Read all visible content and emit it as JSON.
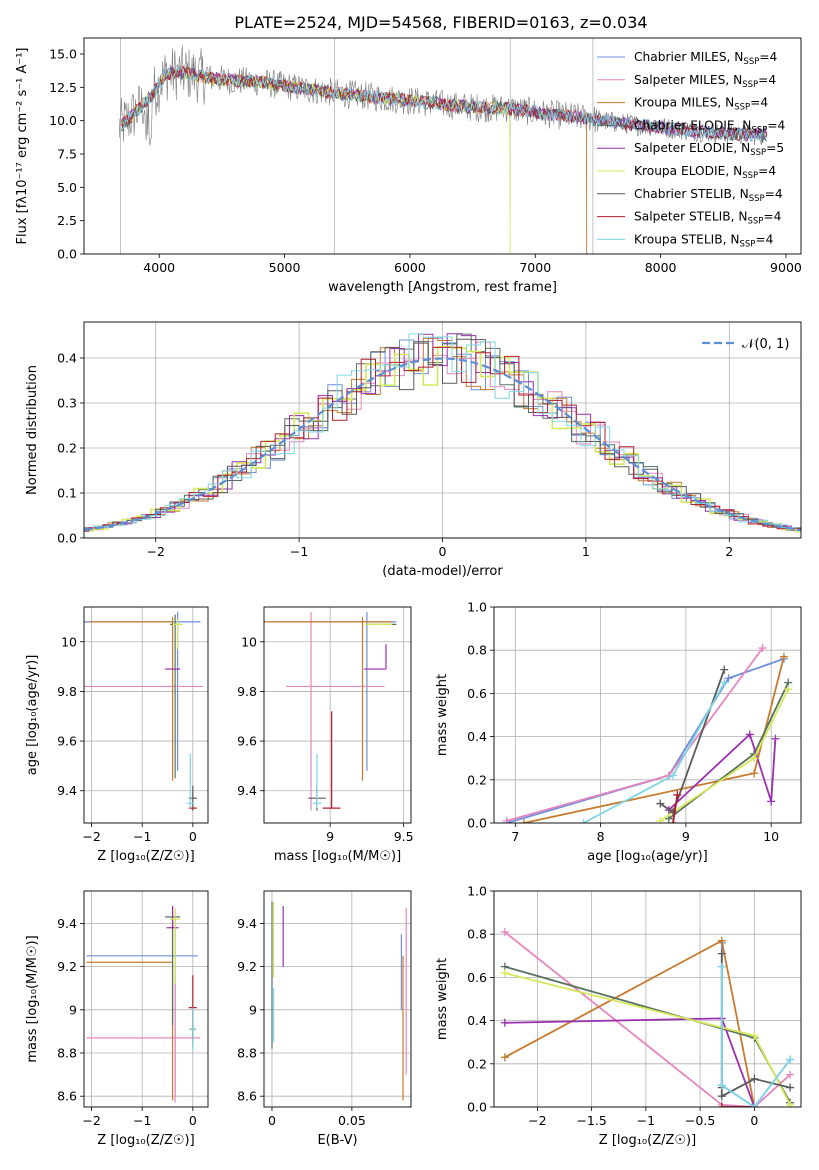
{
  "figure": {
    "title": "PLATE=2524, MJD=54568, FIBERID=0163, z=0.034"
  },
  "series_styles": [
    {
      "name": "Chabrier MILES",
      "color": "#6d8fdb"
    },
    {
      "name": "Salpeter MILES",
      "color": "#e586c0"
    },
    {
      "name": "Kroupa MILES",
      "color": "#c87a2e"
    },
    {
      "name": "Chabrier ELODIE",
      "color": "#56735e"
    },
    {
      "name": "Salpeter ELODIE",
      "color": "#9a2fb0"
    },
    {
      "name": "Kroupa ELODIE",
      "color": "#d6e85a"
    },
    {
      "name": "Chabrier STELIB",
      "color": "#5a5a5a"
    },
    {
      "name": "Salpeter STELIB",
      "color": "#b01e2a"
    },
    {
      "name": "Kroupa STELIB",
      "color": "#7fd6e6"
    }
  ],
  "chart_data": [
    {
      "id": "spectrum",
      "type": "line",
      "title": "PLATE=2524, MJD=54568, FIBERID=0163, z=0.034",
      "xlabel": "wavelength [Angstrom, rest frame]",
      "ylabel": "Flux [fλ10⁻¹⁷ erg cm⁻² s⁻¹ A⁻¹]",
      "xlim": [
        3400,
        9120
      ],
      "ylim": [
        0,
        16.2
      ],
      "xticks": [
        4000,
        5000,
        6000,
        7000,
        8000,
        9000
      ],
      "yticks": [
        0.0,
        2.5,
        5.0,
        7.5,
        10.0,
        12.5,
        15.0
      ],
      "legend_location": "top-right",
      "legend": [
        {
          "label": "Chabrier MILES, N",
          "sub": "SSP",
          "suffix": "=4"
        },
        {
          "label": "Salpeter MILES, N",
          "sub": "SSP",
          "suffix": "=4"
        },
        {
          "label": "Kroupa MILES, N",
          "sub": "SSP",
          "suffix": "=4"
        },
        {
          "label": "Chabrier ELODIE, N",
          "sub": "SSP",
          "suffix": "=4"
        },
        {
          "label": "Salpeter ELODIE, N",
          "sub": "SSP",
          "suffix": "=5"
        },
        {
          "label": "Kroupa ELODIE, N",
          "sub": "SSP",
          "suffix": "=4"
        },
        {
          "label": "Chabrier STELIB, N",
          "sub": "SSP",
          "suffix": "=4"
        },
        {
          "label": "Salpeter STELIB, N",
          "sub": "SSP",
          "suffix": "=4"
        },
        {
          "label": "Kroupa STELIB, N",
          "sub": "SSP",
          "suffix": "=4"
        }
      ],
      "continuum": {
        "x": [
          3680,
          3800,
          3950,
          4050,
          4200,
          4400,
          4600,
          4800,
          5000,
          5300,
          5600,
          5900,
          6200,
          6500,
          6800,
          7100,
          7400,
          7700,
          8000,
          8300,
          8600,
          8850
        ],
        "y": [
          9.5,
          10.5,
          12.0,
          13.5,
          13.6,
          13.2,
          13.0,
          12.9,
          12.6,
          12.2,
          11.9,
          11.6,
          11.3,
          11.0,
          10.9,
          10.5,
          10.2,
          9.8,
          9.5,
          9.2,
          9.0,
          8.9
        ]
      },
      "model_cutoffs": [
        {
          "series": "Kroupa MILES",
          "x": 7410
        },
        {
          "series": "Salpeter MILES",
          "x": 7410
        },
        {
          "series": "Kroupa ELODIE",
          "x": 6800
        }
      ]
    },
    {
      "id": "residuals",
      "type": "bar",
      "xlabel": "(data-model)/error",
      "ylabel": "Normed distribution",
      "xlim": [
        -2.5,
        2.5
      ],
      "ylim": [
        0,
        0.48
      ],
      "xticks": [
        -2,
        -1,
        0,
        1,
        2
      ],
      "yticks": [
        0.0,
        0.1,
        0.2,
        0.3,
        0.4
      ],
      "legend": [
        {
          "label": "𝒩(0, 1)",
          "style": "dashed"
        }
      ],
      "legend_location": "top-right",
      "gaussian": {
        "mean": 0,
        "sigma": 1,
        "color": "#5b8fd6"
      },
      "bin_width": 0.1
    },
    {
      "id": "age_vs_Z",
      "type": "scatter",
      "xlabel": "Z [log₁₀(Z/Z☉)]",
      "ylabel": "age  [log₁₀(age/yr)]",
      "xlim": [
        -2.15,
        0.3
      ],
      "ylim": [
        9.27,
        10.14
      ],
      "xticks": [
        -2,
        -1,
        0
      ],
      "yticks": [
        9.4,
        9.6,
        9.8,
        10.0
      ],
      "points": [
        {
          "series": "Chabrier MILES",
          "x": -0.3,
          "y": 10.08,
          "xerr": [
            1.85,
            0.45
          ],
          "yerr": [
            0.6,
            0.04
          ]
        },
        {
          "series": "Salpeter MILES",
          "x": -0.3,
          "y": 9.82,
          "xerr": [
            1.85,
            0.5
          ],
          "yerr": [
            0.0,
            0.0
          ]
        },
        {
          "series": "Kroupa MILES",
          "x": -0.4,
          "y": 10.08,
          "xerr": [
            1.65,
            0.0
          ],
          "yerr": [
            0.64,
            0.02
          ]
        },
        {
          "series": "Chabrier ELODIE",
          "x": -0.35,
          "y": 10.07,
          "xerr": [
            0.1,
            0.1
          ],
          "yerr": [
            0.62,
            0.04
          ]
        },
        {
          "series": "Salpeter ELODIE",
          "x": -0.4,
          "y": 9.89,
          "xerr": [
            0.15,
            0.15
          ],
          "yerr": [
            0.0,
            0.0
          ]
        },
        {
          "series": "Kroupa ELODIE",
          "x": -0.3,
          "y": 10.07,
          "xerr": [
            0.1,
            0.1
          ],
          "yerr": [
            0.1,
            0.02
          ]
        },
        {
          "series": "Chabrier STELIB",
          "x": 0.0,
          "y": 9.37,
          "xerr": [
            0.08,
            0.08
          ],
          "yerr": [
            0.05,
            0.05
          ]
        },
        {
          "series": "Salpeter STELIB",
          "x": 0.0,
          "y": 9.33,
          "xerr": [
            0.08,
            0.08
          ],
          "yerr": [
            0.0,
            0.0
          ]
        },
        {
          "series": "Kroupa STELIB",
          "x": -0.05,
          "y": 9.35,
          "xerr": [
            0.08,
            0.08
          ],
          "yerr": [
            0.02,
            0.2
          ]
        }
      ]
    },
    {
      "id": "age_vs_mass",
      "type": "scatter",
      "xlabel": "mass [log₁₀(M/M☉)]",
      "ylabel": "",
      "xlim": [
        8.55,
        9.55
      ],
      "ylim": [
        9.27,
        10.14
      ],
      "xticks": [
        9.0,
        9.5
      ],
      "yticks": [
        9.4,
        9.6,
        9.8,
        10.0
      ],
      "points": [
        {
          "series": "Chabrier MILES",
          "x": 9.25,
          "y": 10.08,
          "xerr": [
            0.7,
            0.2
          ],
          "yerr": [
            0.6,
            0.04
          ]
        },
        {
          "series": "Salpeter MILES",
          "x": 8.87,
          "y": 9.82,
          "xerr": [
            0.17,
            0.5
          ],
          "yerr": [
            0.5,
            0.3
          ]
        },
        {
          "series": "Kroupa MILES",
          "x": 9.22,
          "y": 10.08,
          "xerr": [
            0.67,
            0.2
          ],
          "yerr": [
            0.64,
            0.02
          ]
        },
        {
          "series": "Chabrier ELODIE",
          "x": 9.43,
          "y": 10.07,
          "xerr": [
            0.18,
            0.02
          ],
          "yerr": [
            0.0,
            0.0
          ]
        },
        {
          "series": "Salpeter ELODIE",
          "x": 9.38,
          "y": 9.89,
          "xerr": [
            0.15,
            0.0
          ],
          "yerr": [
            0.0,
            0.1
          ]
        },
        {
          "series": "Kroupa ELODIE",
          "x": 9.42,
          "y": 10.07,
          "xerr": [
            0.18,
            0.0
          ],
          "yerr": [
            0.0,
            0.0
          ]
        },
        {
          "series": "Chabrier STELIB",
          "x": 8.91,
          "y": 9.37,
          "xerr": [
            0.06,
            0.06
          ],
          "yerr": [
            0.05,
            0.05
          ]
        },
        {
          "series": "Salpeter STELIB",
          "x": 9.01,
          "y": 9.33,
          "xerr": [
            0.06,
            0.06
          ],
          "yerr": [
            0.0,
            0.39
          ]
        },
        {
          "series": "Kroupa STELIB",
          "x": 8.91,
          "y": 9.35,
          "xerr": [
            0.03,
            0.03
          ],
          "yerr": [
            0.02,
            0.2
          ]
        }
      ]
    },
    {
      "id": "weight_vs_age",
      "type": "line",
      "xlabel": "age  [log₁₀(age/yr)]",
      "ylabel": "mass weight",
      "xlim": [
        6.75,
        10.35
      ],
      "ylim": [
        0,
        1.0
      ],
      "xticks": [
        7,
        8,
        9,
        10
      ],
      "yticks": [
        0.0,
        0.2,
        0.4,
        0.6,
        0.8,
        1.0
      ],
      "series": [
        {
          "name": "Chabrier MILES",
          "points": [
            [
              6.9,
              0.0
            ],
            [
              8.8,
              0.22
            ],
            [
              9.5,
              0.67
            ],
            [
              10.15,
              0.76
            ]
          ]
        },
        {
          "name": "Salpeter MILES",
          "points": [
            [
              6.9,
              0.01
            ],
            [
              8.8,
              0.22
            ],
            [
              9.9,
              0.81
            ]
          ]
        },
        {
          "name": "Kroupa MILES",
          "points": [
            [
              7.1,
              0.0
            ],
            [
              9.8,
              0.23
            ],
            [
              10.15,
              0.77
            ]
          ]
        },
        {
          "name": "Chabrier ELODIE",
          "points": [
            [
              8.8,
              0.02
            ],
            [
              9.8,
              0.32
            ],
            [
              10.2,
              0.65
            ]
          ]
        },
        {
          "name": "Salpeter ELODIE",
          "points": [
            [
              8.8,
              0.06
            ],
            [
              9.75,
              0.41
            ],
            [
              10.0,
              0.1
            ],
            [
              10.05,
              0.39
            ]
          ]
        },
        {
          "name": "Kroupa ELODIE",
          "points": [
            [
              8.7,
              0.01
            ],
            [
              9.8,
              0.3
            ],
            [
              10.2,
              0.62
            ]
          ]
        },
        {
          "name": "Chabrier STELIB",
          "points": [
            [
              8.7,
              0.09
            ],
            [
              8.85,
              0.05
            ],
            [
              9.45,
              0.71
            ]
          ]
        },
        {
          "name": "Salpeter STELIB",
          "points": [
            [
              8.85,
              0.0
            ],
            [
              8.9,
              0.13
            ]
          ]
        },
        {
          "name": "Kroupa STELIB",
          "points": [
            [
              7.8,
              0.0
            ],
            [
              8.85,
              0.22
            ],
            [
              9.45,
              0.65
            ]
          ]
        }
      ]
    },
    {
      "id": "mass_vs_Z",
      "type": "scatter",
      "xlabel": "Z [log₁₀(Z/Z☉)]",
      "ylabel": "mass [log₁₀(M/M☉)]",
      "xlim": [
        -2.15,
        0.3
      ],
      "ylim": [
        8.55,
        9.55
      ],
      "xticks": [
        -2,
        -1,
        0
      ],
      "yticks": [
        8.6,
        8.8,
        9.0,
        9.2,
        9.4
      ],
      "points": [
        {
          "series": "Chabrier MILES",
          "x": -0.35,
          "y": 9.25,
          "xerr": [
            1.75,
            0.45
          ],
          "yerr": [
            0.65,
            0.2
          ]
        },
        {
          "series": "Salpeter MILES",
          "x": -0.35,
          "y": 8.87,
          "xerr": [
            1.75,
            0.5
          ],
          "yerr": [
            0.3,
            0.6
          ]
        },
        {
          "series": "Kroupa MILES",
          "x": -0.4,
          "y": 9.22,
          "xerr": [
            1.7,
            0.0
          ],
          "yerr": [
            0.64,
            0.2
          ]
        },
        {
          "series": "Chabrier ELODIE",
          "x": -0.4,
          "y": 9.43,
          "xerr": [
            0.15,
            0.15
          ],
          "yerr": [
            0.5,
            0.05
          ]
        },
        {
          "series": "Salpeter ELODIE",
          "x": -0.4,
          "y": 9.38,
          "xerr": [
            0.12,
            0.12
          ],
          "yerr": [
            0.0,
            0.1
          ]
        },
        {
          "series": "Kroupa ELODIE",
          "x": -0.35,
          "y": 9.42,
          "xerr": [
            0.1,
            0.1
          ],
          "yerr": [
            0.3,
            0.05
          ]
        },
        {
          "series": "Chabrier STELIB",
          "x": 0.0,
          "y": 8.91,
          "xerr": [
            0.06,
            0.06
          ],
          "yerr": [
            0.08,
            0.08
          ]
        },
        {
          "series": "Salpeter STELIB",
          "x": 0.0,
          "y": 9.01,
          "xerr": [
            0.08,
            0.08
          ],
          "yerr": [
            0.15,
            0.15
          ]
        },
        {
          "series": "Kroupa STELIB",
          "x": 0.0,
          "y": 8.91,
          "xerr": [
            0.05,
            0.05
          ],
          "yerr": [
            0.1,
            0.1
          ]
        }
      ]
    },
    {
      "id": "mass_vs_EBV",
      "type": "scatter",
      "xlabel": "E(B-V)",
      "ylabel": "",
      "xlim": [
        -0.005,
        0.087
      ],
      "ylim": [
        8.55,
        9.55
      ],
      "xticks": [
        0.0,
        0.05
      ],
      "yticks": [
        8.6,
        8.8,
        9.0,
        9.2,
        9.4
      ],
      "vlines": [
        {
          "series": "Chabrier MILES",
          "x": 0.081,
          "ymin": 9.0,
          "ymax": 9.35
        },
        {
          "series": "Salpeter MILES",
          "x": 0.084,
          "ymin": 8.7,
          "ymax": 9.47
        },
        {
          "series": "Kroupa MILES",
          "x": 0.082,
          "ymin": 8.58,
          "ymax": 9.25
        },
        {
          "series": "Chabrier ELODIE",
          "x": 0.0,
          "ymin": 8.82,
          "ymax": 9.5
        },
        {
          "series": "Salpeter ELODIE",
          "x": 0.007,
          "ymin": 9.2,
          "ymax": 9.48
        },
        {
          "series": "Kroupa ELODIE",
          "x": 0.001,
          "ymin": 9.15,
          "ymax": 9.5
        },
        {
          "series": "Kroupa STELIB",
          "x": 0.001,
          "ymin": 8.85,
          "ymax": 9.1
        }
      ]
    },
    {
      "id": "weight_vs_Z",
      "type": "line",
      "xlabel": "Z [log₁₀(Z/Z☉)]",
      "ylabel": "mass weight",
      "xlim": [
        -2.4,
        0.43
      ],
      "ylim": [
        0,
        1.0
      ],
      "xticks": [
        -2.0,
        -1.5,
        -1.0,
        -0.5,
        0.0
      ],
      "yticks": [
        0.0,
        0.2,
        0.4,
        0.6,
        0.8,
        1.0
      ],
      "series": [
        {
          "name": "Chabrier MILES",
          "points": [
            [
              -0.3,
              0.76
            ],
            [
              -0.3,
              0.65
            ],
            [
              -0.3,
              0.1
            ],
            [
              0.0,
              0.0
            ],
            [
              0.33,
              0.22
            ]
          ]
        },
        {
          "name": "Salpeter MILES",
          "points": [
            [
              -2.3,
              0.81
            ],
            [
              -0.3,
              0.01
            ],
            [
              0.0,
              0.0
            ],
            [
              0.33,
              0.15
            ]
          ]
        },
        {
          "name": "Kroupa MILES",
          "points": [
            [
              -2.3,
              0.23
            ],
            [
              -0.3,
              0.77
            ],
            [
              0.0,
              0.0
            ]
          ]
        },
        {
          "name": "Chabrier ELODIE",
          "points": [
            [
              -2.3,
              0.65
            ],
            [
              0.0,
              0.32
            ],
            [
              0.33,
              0.02
            ]
          ]
        },
        {
          "name": "Salpeter ELODIE",
          "points": [
            [
              -2.3,
              0.39
            ],
            [
              -0.3,
              0.41
            ],
            [
              0.0,
              0.0
            ]
          ]
        },
        {
          "name": "Kroupa ELODIE",
          "points": [
            [
              -2.3,
              0.62
            ],
            [
              0.0,
              0.33
            ],
            [
              0.33,
              0.01
            ]
          ]
        },
        {
          "name": "Chabrier STELIB",
          "points": [
            [
              -0.3,
              0.71
            ],
            [
              -0.3,
              0.09
            ],
            [
              -0.3,
              0.05
            ],
            [
              0.0,
              0.13
            ],
            [
              0.33,
              0.09
            ]
          ]
        },
        {
          "name": "Salpeter STELIB",
          "points": [
            [
              -0.3,
              0.0
            ],
            [
              0.0,
              0.0
            ]
          ]
        },
        {
          "name": "Kroupa STELIB",
          "points": [
            [
              -0.3,
              0.65
            ],
            [
              -0.3,
              0.1
            ],
            [
              0.0,
              0.0
            ],
            [
              0.33,
              0.22
            ]
          ]
        }
      ]
    }
  ]
}
